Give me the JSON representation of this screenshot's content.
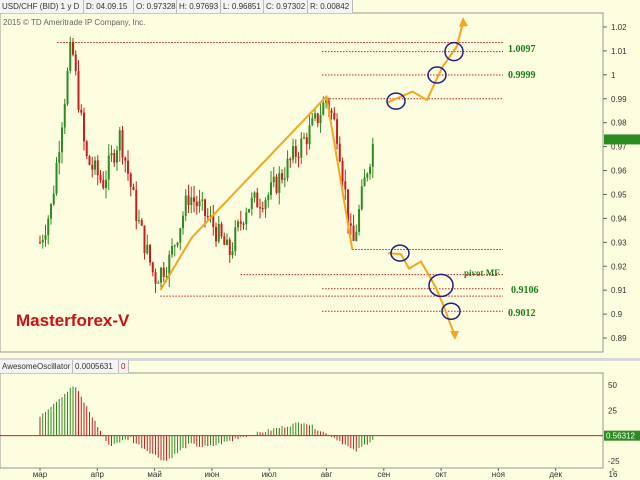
{
  "header": {
    "symbol": "USD/CHF (BID) 1 y D",
    "date": "D: 04.09.15",
    "open": "O: 0.97328",
    "high": "H: 0.97693",
    "low": "L: 0.96851",
    "close": "C: 0.97302",
    "range": "R: 0.00842"
  },
  "copyright": "2015 © TD Ameritrade IP Company, Inc.",
  "watermark": "Masterforex-V",
  "oscillator": {
    "name": "AwesomeOscillator",
    "value": "0.0005631",
    "marker": "0",
    "last_label": "0.56312"
  },
  "colors": {
    "background": "#fdfde0",
    "up_bar": "#2e8b22",
    "down_bar": "#c81e1e",
    "guide_line": "#cc2222",
    "path": "#f5a623",
    "level_label": "#1a7f1a",
    "circle": "#202080",
    "watermark": "#cc1111",
    "last_price_box": "#2e8b22"
  },
  "chart_data": {
    "type": "candlestick",
    "y_axis": {
      "range": [
        0.885,
        1.025
      ],
      "ticks": [
        "1.02",
        "1.01",
        "1",
        "0.99",
        "0.98",
        "0.97",
        "0.96",
        "0.95",
        "0.94",
        "0.93",
        "0.92",
        "0.91",
        "0.9",
        "0.89"
      ]
    },
    "x_axis": {
      "labels": [
        "мар",
        "апр",
        "май",
        "июн",
        "июл",
        "авг",
        "сен",
        "окт",
        "ноя",
        "дек",
        "16"
      ]
    },
    "price_anchors_by_month": [
      {
        "m": 0.0,
        "price": 0.93
      },
      {
        "m": 0.2,
        "price": 0.945
      },
      {
        "m": 0.4,
        "price": 0.985
      },
      {
        "m": 0.55,
        "price": 1.013
      },
      {
        "m": 0.8,
        "price": 0.965
      },
      {
        "m": 1.1,
        "price": 0.955
      },
      {
        "m": 1.4,
        "price": 0.975
      },
      {
        "m": 1.7,
        "price": 0.94
      },
      {
        "m": 2.0,
        "price": 0.915
      },
      {
        "m": 2.25,
        "price": 0.922
      },
      {
        "m": 2.6,
        "price": 0.95
      },
      {
        "m": 3.0,
        "price": 0.938
      },
      {
        "m": 3.3,
        "price": 0.925
      },
      {
        "m": 3.6,
        "price": 0.945
      },
      {
        "m": 4.0,
        "price": 0.95
      },
      {
        "m": 4.4,
        "price": 0.965
      },
      {
        "m": 4.8,
        "price": 0.98
      },
      {
        "m": 5.0,
        "price": 0.99
      },
      {
        "m": 5.2,
        "price": 0.975
      },
      {
        "m": 5.45,
        "price": 0.927
      },
      {
        "m": 5.7,
        "price": 0.96
      },
      {
        "m": 5.85,
        "price": 0.975
      }
    ],
    "levels": [
      {
        "price": 1.0097,
        "label": "1.0097"
      },
      {
        "price": 0.9999,
        "label": "0.9999"
      },
      {
        "price": 0.9106,
        "label": "0.9106"
      },
      {
        "price": 0.9012,
        "label": "0.9012"
      }
    ],
    "annotations": [
      "pivot MF"
    ],
    "last_price_label": "0.9730",
    "oscillator_ticks": [
      "50",
      "25",
      "0",
      "-25"
    ],
    "oscillator_range": [
      -30,
      60
    ]
  }
}
